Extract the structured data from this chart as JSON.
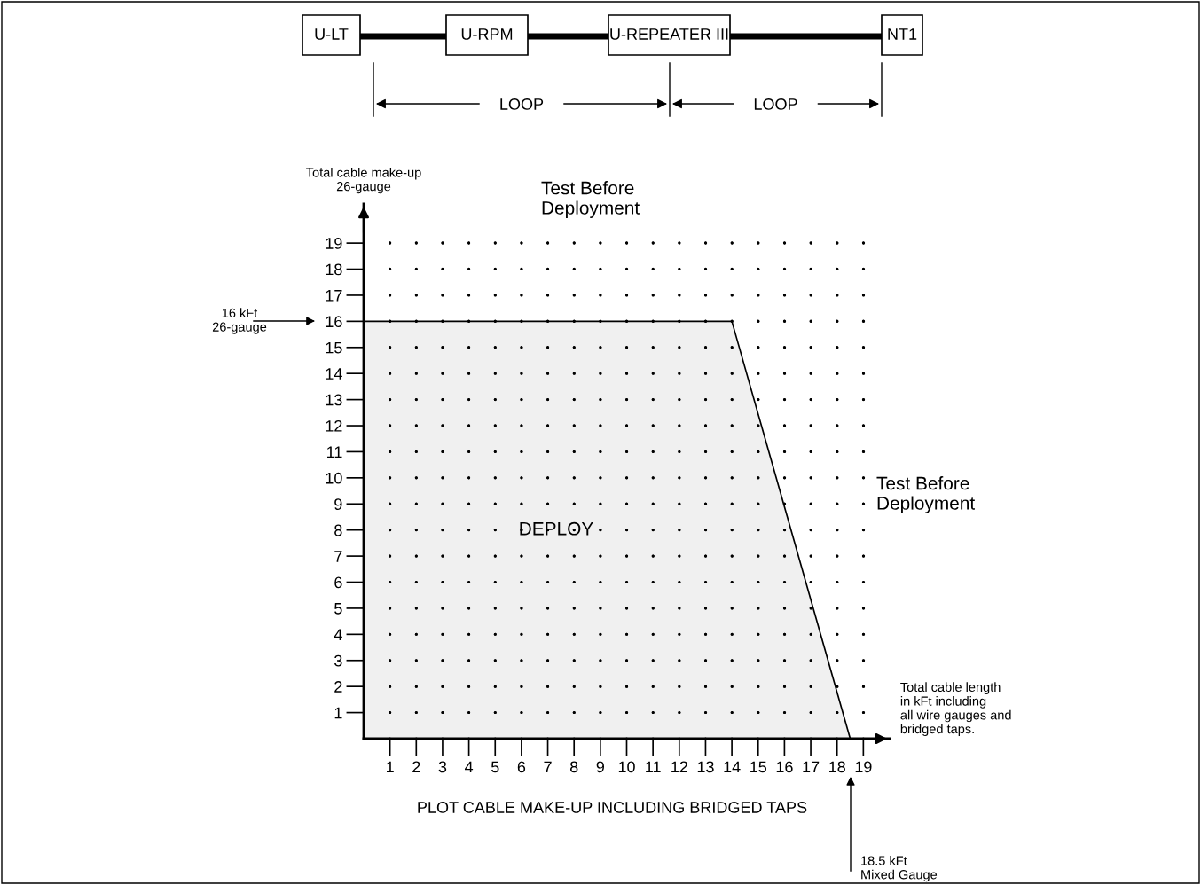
{
  "chart_data": {
    "type": "area",
    "ylabel": "Total cable make-up\n26-gauge",
    "xlabel": "Total cable length\nin kFt including\nall wire gauges and\nbridged taps.",
    "series": [
      {
        "x": [
          0,
          14,
          18.5
        ],
        "values": [
          16,
          16,
          0
        ],
        "color": "#f0f0f0"
      }
    ],
    "xlim": [
      0,
      20
    ],
    "ylim": [
      0,
      20.5
    ],
    "xticks": [
      1,
      2,
      3,
      4,
      5,
      6,
      7,
      8,
      9,
      10,
      11,
      12,
      13,
      14,
      15,
      16,
      17,
      18,
      19
    ],
    "yticks": [
      1,
      2,
      3,
      4,
      5,
      6,
      7,
      8,
      9,
      10,
      11,
      12,
      13,
      14,
      15,
      16,
      17,
      18,
      19
    ],
    "grid": true,
    "annotations": [
      "U-LT",
      "U-RPM",
      "U-REPEATER III",
      "NT1",
      "LOOP",
      "LOOP",
      "Test Before\nDeployment",
      "Test Before\nDeployment",
      "DEPLOY",
      "16 kFt\n26-gauge",
      "18.5 kFt\nMixed Gauge",
      "PLOT CABLE MAKE-UP INCLUDING BRIDGED TAPS"
    ]
  }
}
